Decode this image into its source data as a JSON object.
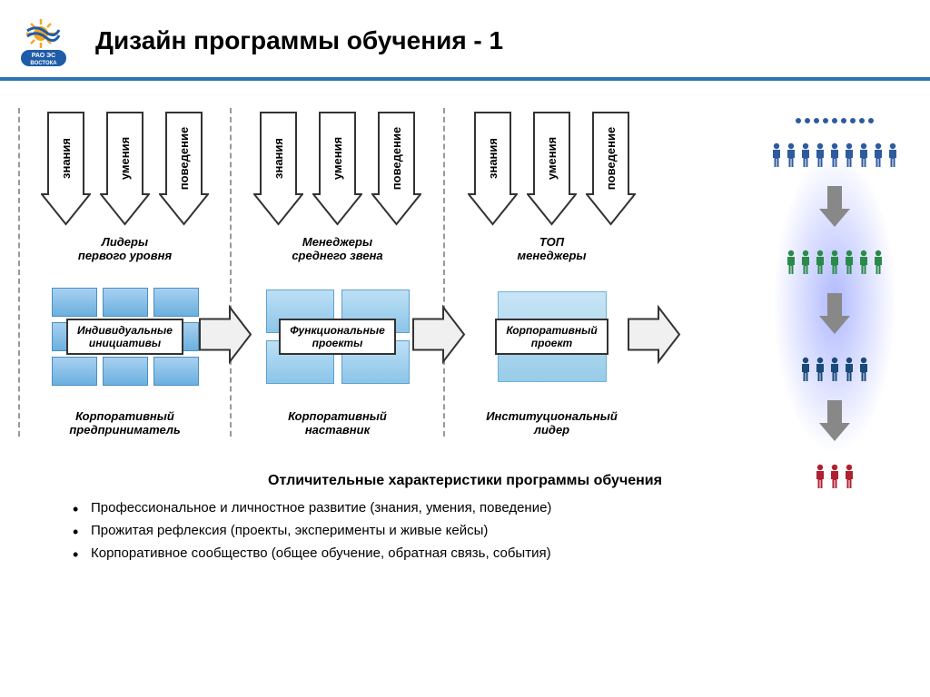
{
  "header": {
    "title": "Дизайн программы обучения - 1"
  },
  "logo": {
    "text_top": "РАО ЭС",
    "text_bot": "ВОСТОКА",
    "sun_color": "#f5a623",
    "blue": "#1e5ba8"
  },
  "arrow_labels": [
    "знания",
    "умения",
    "поведение"
  ],
  "columns": [
    {
      "level": "Лидеры\nпервого уровня",
      "mid": "Индивидуальные\nинициативы",
      "role": "Корпоративный\nпредприниматель",
      "type": "grid3"
    },
    {
      "level": "Менеджеры\nсреднего звена",
      "mid": "Функциональные\nпроекты",
      "role": "Корпоративный\nнаставник",
      "type": "grid2"
    },
    {
      "level": "ТОП\nменеджеры",
      "mid": "Корпоративный\nпроект",
      "role": "Институциональный\nлидер",
      "type": "big"
    }
  ],
  "people": {
    "rows": [
      {
        "count": 9,
        "color": "#2e5a9e",
        "dots": true
      },
      {
        "count": 7,
        "color": "#2a8a4a"
      },
      {
        "count": 5,
        "color": "#1a4a7a"
      },
      {
        "count": 3,
        "color": "#b02030"
      }
    ],
    "arrow_color": "#888"
  },
  "colors": {
    "header_line": "#2e75b6",
    "arrow_stroke": "#333",
    "arrow_fill": "#fff",
    "dash": "#999",
    "cell_top": "#a8d0f0",
    "cell_bot": "#6bb0e0",
    "right_arrow_fill": "#f0f0f0",
    "right_arrow_stroke": "#333"
  },
  "bottom": {
    "heading": "Отличительные характеристики программы обучения",
    "items": [
      "Профессиональное и личностное развитие (знания, умения, поведение)",
      "Прожитая рефлексия (проекты, эксперименты и живые кейсы)",
      "Корпоративное сообщество (общее обучение, обратная связь, события)"
    ]
  }
}
